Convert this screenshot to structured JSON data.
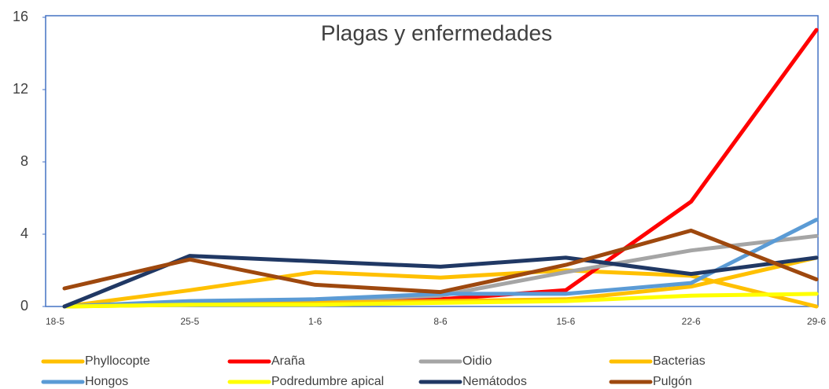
{
  "chart_data": {
    "type": "line",
    "title": "Plagas y enfermedades",
    "categories": [
      "18-5",
      "25-5",
      "1-6",
      "8-6",
      "15-6",
      "22-6",
      "29-6"
    ],
    "ylim": [
      0,
      16
    ],
    "yticks": [
      0,
      4,
      8,
      12,
      16
    ],
    "series": [
      {
        "name": "Phyllocopte",
        "color": "#FFC000",
        "values": [
          0,
          0.9,
          1.9,
          1.6,
          2.0,
          1.7,
          0
        ]
      },
      {
        "name": "Araña",
        "color": "#FF0000",
        "values": [
          0,
          0.2,
          0.2,
          0.4,
          0.9,
          5.8,
          15.3
        ]
      },
      {
        "name": "Oidio",
        "color": "#A5A5A5",
        "values": [
          0,
          0.2,
          0.3,
          0.6,
          1.9,
          3.1,
          3.9
        ]
      },
      {
        "name": "Bacterias",
        "color": "#FFC000",
        "values": [
          0,
          0.1,
          0.2,
          0.3,
          0.4,
          1.1,
          2.7
        ]
      },
      {
        "name": "Hongos",
        "color": "#5B9BD5",
        "values": [
          0,
          0.3,
          0.4,
          0.7,
          0.7,
          1.3,
          4.8
        ]
      },
      {
        "name": "Podredumbre apical",
        "color": "#FFFF00",
        "values": [
          0,
          0.1,
          0.1,
          0.2,
          0.3,
          0.6,
          0.7
        ]
      },
      {
        "name": "Nemátodos",
        "color": "#203864",
        "values": [
          0,
          2.8,
          2.5,
          2.2,
          2.7,
          1.8,
          2.7
        ]
      },
      {
        "name": "Pulgón",
        "color": "#9E480E",
        "values": [
          1.0,
          2.6,
          1.2,
          0.8,
          2.3,
          4.2,
          1.5
        ]
      }
    ]
  }
}
